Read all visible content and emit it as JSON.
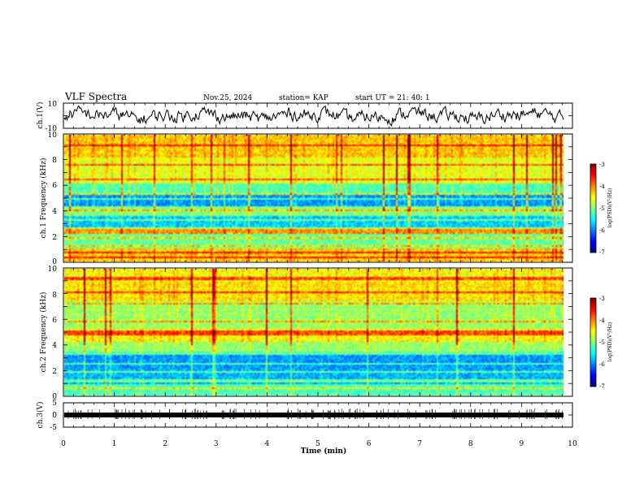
{
  "header": {
    "title": "VLF Spectra",
    "date": "Nov.25, 2024",
    "station": "station= KAP",
    "start": "start UT =  21: 40: 1"
  },
  "colors": {
    "jet": [
      "#00007f",
      "#0000ff",
      "#007fff",
      "#00ffff",
      "#7fff7f",
      "#ffff00",
      "#ff7f00",
      "#ff0000",
      "#7f0000"
    ]
  },
  "chart_data": [
    {
      "type": "line",
      "name": "ch1-waveform",
      "ylabel": "ch.1(V)",
      "ylim": [
        -10,
        10
      ],
      "yticks": [
        "10",
        "-10"
      ],
      "xlim": [
        0,
        10
      ],
      "trace": {
        "center": 0,
        "amplitude": 5,
        "noise": "dense random"
      }
    },
    {
      "type": "heatmap",
      "name": "ch1-spectrogram",
      "ylabel": "ch.1 Frequency (kHz)",
      "ylim": [
        0,
        10
      ],
      "yticks": [
        "0",
        "2",
        "4",
        "6",
        "8",
        "10"
      ],
      "xlim": [
        0,
        9.85
      ],
      "colorbar": {
        "label": "log(PSD)(V²/Hz)",
        "range": [
          -7,
          -3
        ],
        "ticks": [
          "-3",
          "-4",
          "-5",
          "-6",
          "-7"
        ]
      },
      "bands": [
        {
          "f": [
            0,
            1.0
          ],
          "level": -4.3
        },
        {
          "f": [
            1.0,
            2.1
          ],
          "level": -5.1
        },
        {
          "f": [
            2.1,
            2.6
          ],
          "level": -4.8
        },
        {
          "f": [
            2.6,
            3.6
          ],
          "level": -5.7
        },
        {
          "f": [
            3.6,
            4.4
          ],
          "level": -5.0
        },
        {
          "f": [
            4.4,
            5.2
          ],
          "level": -5.9
        },
        {
          "f": [
            5.2,
            6.2
          ],
          "level": -5.2
        },
        {
          "f": [
            6.2,
            8.3
          ],
          "level": -4.6
        },
        {
          "f": [
            8.3,
            10
          ],
          "level": -4.3
        }
      ],
      "lines_khz": [
        0.3,
        0.6,
        1.2,
        1.8,
        2.2,
        2.4,
        3.2,
        4.0,
        4.9,
        5.3,
        6.5,
        7.7,
        9.2
      ]
    },
    {
      "type": "heatmap",
      "name": "ch2-spectrogram",
      "ylabel": "ch.2 Frequency (kHz)",
      "ylim": [
        0,
        10
      ],
      "yticks": [
        "0",
        "2",
        "4",
        "6",
        "8",
        "10"
      ],
      "xlim": [
        0,
        9.85
      ],
      "colorbar": {
        "label": "log(PSD)(V²/Hz)",
        "range": [
          -7,
          -3
        ],
        "ticks": [
          "-3",
          "-4",
          "-5",
          "-6",
          "-7"
        ]
      },
      "bands": [
        {
          "f": [
            0,
            0.8
          ],
          "level": -5.2
        },
        {
          "f": [
            0.8,
            2.0
          ],
          "level": -5.8
        },
        {
          "f": [
            2.0,
            3.4
          ],
          "level": -5.9
        },
        {
          "f": [
            3.4,
            4.2
          ],
          "level": -4.9
        },
        {
          "f": [
            4.2,
            5.3
          ],
          "level": -4.5
        },
        {
          "f": [
            5.3,
            7.5
          ],
          "level": -4.9
        },
        {
          "f": [
            7.5,
            9.0
          ],
          "level": -4.4
        },
        {
          "f": [
            9.0,
            10
          ],
          "level": -4.5
        }
      ],
      "lines_khz": [
        0.5,
        1.1,
        1.8,
        2.5,
        3.3,
        4.8,
        5.0,
        5.8,
        7.3,
        8.2,
        9.3
      ]
    },
    {
      "type": "line",
      "name": "ch3-waveform",
      "ylabel": "ch.3(V)",
      "ylim": [
        -5,
        5
      ],
      "yticks": [
        "5",
        "0",
        "-5"
      ],
      "xlim": [
        0,
        10
      ],
      "trace": {
        "center": 0,
        "band": [
          -0.4,
          0.4
        ]
      }
    }
  ],
  "xaxis": {
    "label": "Time  (min)",
    "ticks": [
      "0",
      "1",
      "2",
      "3",
      "4",
      "5",
      "6",
      "7",
      "8",
      "9",
      "10"
    ],
    "range": [
      0,
      10
    ]
  }
}
